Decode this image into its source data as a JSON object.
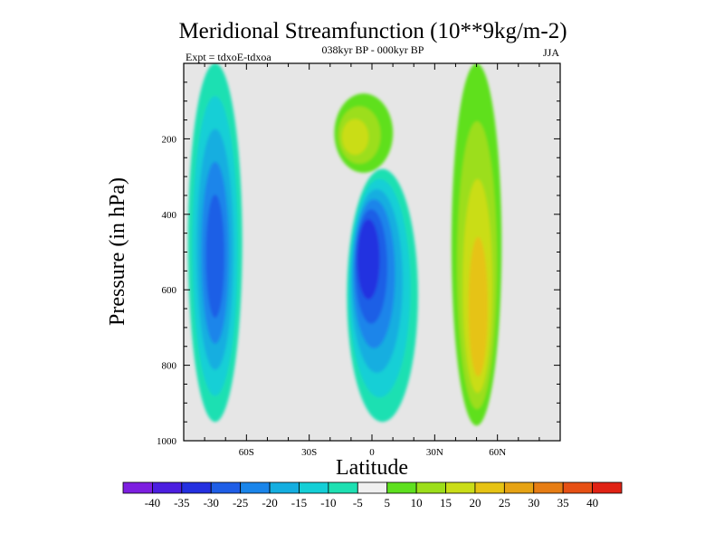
{
  "chart_data": {
    "type": "heatmap",
    "plot_type": "filled contour (latitude-pressure cross section)",
    "title": "Meridional Streamfunction (10**9kg/m-2)",
    "subtitle": "038kyr BP - 000kyr BP",
    "left_label": "Expt = tdxoE-tdxoa",
    "season": "JJA",
    "xlabel": "Latitude",
    "ylabel": "Pressure (in hPa)",
    "x_ticks": [
      {
        "value": -60,
        "label": "60S"
      },
      {
        "value": -30,
        "label": "30S"
      },
      {
        "value": 0,
        "label": "0"
      },
      {
        "value": 30,
        "label": "30N"
      },
      {
        "value": 60,
        "label": "60N"
      }
    ],
    "y_ticks": [
      {
        "value": 200,
        "label": "200"
      },
      {
        "value": 400,
        "label": "400"
      },
      {
        "value": 600,
        "label": "600"
      },
      {
        "value": 800,
        "label": "800"
      },
      {
        "value": 1000,
        "label": "1000"
      }
    ],
    "xlim": [
      -90,
      90
    ],
    "ylim": [
      1000,
      0
    ],
    "y_reversed": true,
    "background_color": "#e6e6e6",
    "colorbar": {
      "labels": [
        "-40",
        "-35",
        "-30",
        "-25",
        "-20",
        "-15",
        "-10",
        "-5",
        "5",
        "10",
        "15",
        "20",
        "25",
        "30",
        "35",
        "40"
      ],
      "colors": [
        "#7d1fe0",
        "#4c1fe0",
        "#2430e0",
        "#1f5ee6",
        "#1a85ea",
        "#14aee0",
        "#14cfd6",
        "#1ee0b2",
        "#f0f0f0",
        "#5ee01f",
        "#9cde1a",
        "#cadd18",
        "#e6c314",
        "#e6a314",
        "#e67d14",
        "#e65014",
        "#e02214"
      ]
    },
    "features": [
      {
        "name": "southern polar cell",
        "sign": "negative",
        "lat_range": [
          -88,
          -62
        ],
        "p_range": [
          0,
          950
        ],
        "peak_value": -25,
        "peak_lat": -75,
        "peak_p": 520
      },
      {
        "name": "equatorial tropospheric cell",
        "sign": "negative",
        "lat_range": [
          -12,
          22
        ],
        "p_range": [
          280,
          950
        ],
        "peak_value": -30,
        "peak_lat": -3,
        "peak_p": 500
      },
      {
        "name": "upper tropical dipole",
        "sign": "positive",
        "lat_range": [
          -18,
          10
        ],
        "p_range": [
          80,
          290
        ],
        "peak_value": 15,
        "peak_lat": -10,
        "peak_p": 200
      },
      {
        "name": "northern mid-latitude cell",
        "sign": "positive",
        "lat_range": [
          38,
          62
        ],
        "p_range": [
          0,
          960
        ],
        "peak_value": 20,
        "peak_lat": 51,
        "peak_p": 700
      }
    ]
  }
}
